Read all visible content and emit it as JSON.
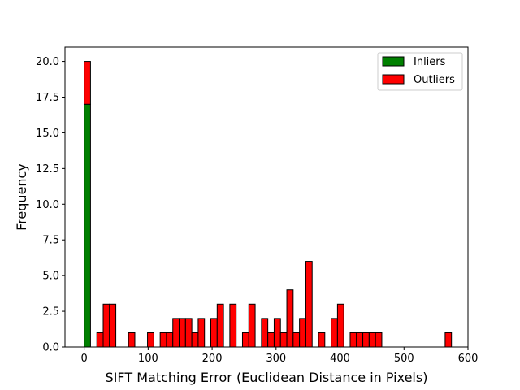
{
  "chart_data": {
    "type": "bar",
    "subtype": "stacked-histogram",
    "xlabel": "SIFT Matching Error (Euclidean Distance in Pixels)",
    "ylabel": "Frequency",
    "xlim": [
      -30,
      600
    ],
    "ylim": [
      0,
      21
    ],
    "x_ticks": [
      0,
      100,
      200,
      300,
      400,
      500,
      600
    ],
    "y_ticks": [
      0,
      2.5,
      5,
      7.5,
      10,
      12.5,
      15,
      17.5,
      20
    ],
    "x_tick_labels": [
      "0",
      "100",
      "200",
      "300",
      "400",
      "500",
      "600"
    ],
    "y_tick_labels": [
      "0.0",
      "2.5",
      "5.0",
      "7.5",
      "10.0",
      "12.5",
      "15.0",
      "17.5",
      "20.0"
    ],
    "bin_width": 9.9,
    "legend_position": "upper-right",
    "series": [
      {
        "name": "Inliers",
        "color": "#008000",
        "bins": [
          {
            "x": 4.95,
            "y": 17
          }
        ]
      },
      {
        "name": "Outliers",
        "color": "#ff0000",
        "bins": [
          {
            "x": 4.95,
            "y": 3
          },
          {
            "x": 24.75,
            "y": 1
          },
          {
            "x": 34.65,
            "y": 3
          },
          {
            "x": 44.55,
            "y": 3
          },
          {
            "x": 74.25,
            "y": 1
          },
          {
            "x": 103.95,
            "y": 1
          },
          {
            "x": 123.75,
            "y": 1
          },
          {
            "x": 133.65,
            "y": 1
          },
          {
            "x": 143.55,
            "y": 2
          },
          {
            "x": 153.45,
            "y": 2
          },
          {
            "x": 163.35,
            "y": 2
          },
          {
            "x": 173.25,
            "y": 1
          },
          {
            "x": 183.15,
            "y": 2
          },
          {
            "x": 202.95,
            "y": 2
          },
          {
            "x": 212.85,
            "y": 3
          },
          {
            "x": 232.65,
            "y": 3
          },
          {
            "x": 252.45,
            "y": 1
          },
          {
            "x": 262.35,
            "y": 3
          },
          {
            "x": 282.15,
            "y": 2
          },
          {
            "x": 292.05,
            "y": 1
          },
          {
            "x": 301.95,
            "y": 2
          },
          {
            "x": 311.85,
            "y": 1
          },
          {
            "x": 321.75,
            "y": 4
          },
          {
            "x": 331.65,
            "y": 1
          },
          {
            "x": 341.55,
            "y": 2
          },
          {
            "x": 351.45,
            "y": 6
          },
          {
            "x": 371.25,
            "y": 1
          },
          {
            "x": 391.05,
            "y": 2
          },
          {
            "x": 400.95,
            "y": 3
          },
          {
            "x": 420.75,
            "y": 1
          },
          {
            "x": 430.65,
            "y": 1
          },
          {
            "x": 440.55,
            "y": 1
          },
          {
            "x": 450.45,
            "y": 1
          },
          {
            "x": 460.35,
            "y": 1
          },
          {
            "x": 569.25,
            "y": 1
          }
        ]
      }
    ],
    "zero_line_segments": [
      [
        465.3,
        564.3
      ]
    ]
  }
}
